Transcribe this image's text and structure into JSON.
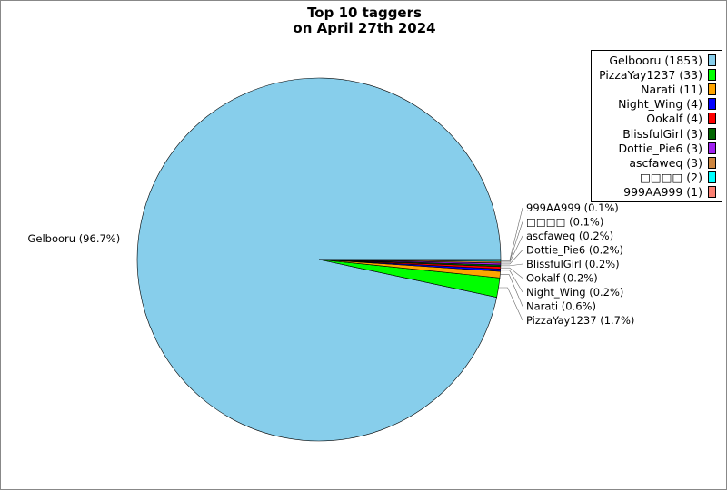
{
  "chart_data": {
    "type": "pie",
    "title": [
      "Top 10 taggers",
      "on April 27th 2024"
    ],
    "legend_placement": "top-right",
    "slices": [
      {
        "name": "Gelbooru",
        "value": 1853,
        "percent_label": "Gelbooru (96.7%)",
        "legend": "Gelbooru (1853)",
        "color": "#87ceeb"
      },
      {
        "name": "PizzaYay1237",
        "value": 33,
        "percent_label": "PizzaYay1237 (1.7%)",
        "legend": "PizzaYay1237 (33)",
        "color": "#00ff00"
      },
      {
        "name": "Narati",
        "value": 11,
        "percent_label": "Narati (0.6%)",
        "legend": "Narati (11)",
        "color": "#ffa500"
      },
      {
        "name": "Night_Wing",
        "value": 4,
        "percent_label": "Night_Wing (0.2%)",
        "legend": "Night_Wing (4)",
        "color": "#0000ff"
      },
      {
        "name": "Ookalf",
        "value": 4,
        "percent_label": "Ookalf (0.2%)",
        "legend": "Ookalf (4)",
        "color": "#ff0000"
      },
      {
        "name": "BlissfulGirl",
        "value": 3,
        "percent_label": "BlissfulGirl (0.2%)",
        "legend": "BlissfulGirl (3)",
        "color": "#006400"
      },
      {
        "name": "Dottie_Pie6",
        "value": 3,
        "percent_label": "Dottie_Pie6 (0.2%)",
        "legend": "Dottie_Pie6 (3)",
        "color": "#a020f0"
      },
      {
        "name": "ascfaweq",
        "value": 3,
        "percent_label": "ascfaweq (0.2%)",
        "legend": "ascfaweq (3)",
        "color": "#cd853f"
      },
      {
        "name": "□□□□",
        "value": 2,
        "percent_label": "□□□□ (0.1%)",
        "legend": "□□□□ (2)",
        "color": "#00ffff"
      },
      {
        "name": "999AA999",
        "value": 1,
        "percent_label": "999AA999 (0.1%)",
        "legend": "999AA999 (1)",
        "color": "#fa8072"
      }
    ]
  }
}
